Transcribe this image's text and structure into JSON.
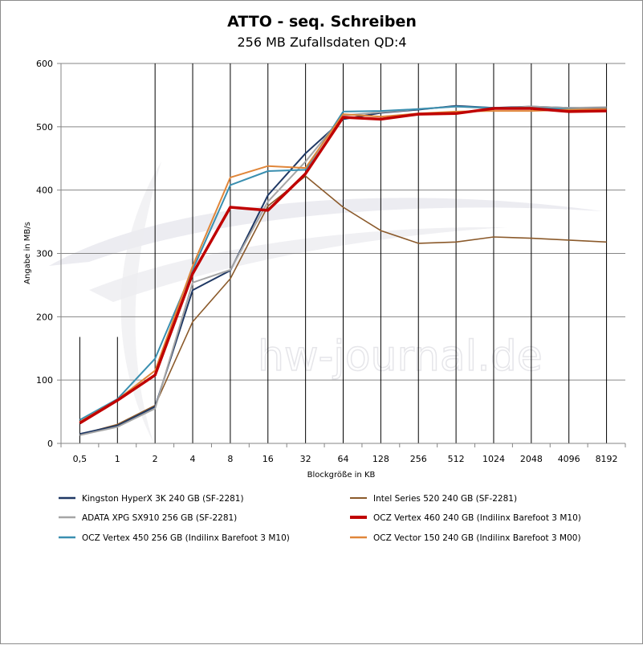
{
  "chart_data": {
    "type": "line",
    "title": "ATTO - seq. Schreiben",
    "subtitle": "256 MB Zufallsdaten QD:4",
    "xlabel": "Blockgröße in KB",
    "ylabel": "Angabe in MB/s",
    "watermark": "hw-journal.de",
    "categories": [
      "0,5",
      "1",
      "2",
      "4",
      "8",
      "16",
      "32",
      "64",
      "128",
      "256",
      "512",
      "1024",
      "2048",
      "4096",
      "8192"
    ],
    "ylim": [
      0,
      600
    ],
    "yticks": [
      "0",
      "100",
      "200",
      "300",
      "400",
      "500",
      "600"
    ],
    "grid": "horizontal and vertical",
    "legend_position": "bottom",
    "series": [
      {
        "name": "Kingston HyperX 3K 240 GB (SF-2281)",
        "color": "#1f3864",
        "width": 2,
        "values": [
          15,
          28,
          58,
          242,
          273,
          392,
          458,
          512,
          522,
          527,
          533,
          530,
          532,
          530,
          530
        ]
      },
      {
        "name": "Intel Series 520 240 GB (SF-2281)",
        "color": "#8b5a2b",
        "width": 1.6,
        "values": [
          14,
          30,
          60,
          192,
          260,
          375,
          422,
          373,
          336,
          316,
          318,
          326,
          324,
          321,
          318
        ]
      },
      {
        "name": "ADATA XPG SX910 256 GB (SF-2281)",
        "color": "#a6a6a6",
        "width": 2,
        "values": [
          13,
          26,
          55,
          254,
          274,
          382,
          445,
          518,
          523,
          528,
          532,
          529,
          532,
          530,
          531
        ]
      },
      {
        "name": "OCZ Vertex 460 240 GB (Indilinx Barefoot 3 M10)",
        "color": "#c00000",
        "width": 3.5,
        "values": [
          32,
          68,
          108,
          268,
          373,
          368,
          426,
          515,
          512,
          520,
          521,
          529,
          529,
          524,
          525
        ]
      },
      {
        "name": "OCZ Vertex 450 256 GB (Indilinx Barefoot 3 M10)",
        "color": "#3a8fb0",
        "width": 2,
        "values": [
          37,
          70,
          134,
          274,
          408,
          430,
          432,
          524,
          525,
          528,
          532,
          530,
          530,
          528,
          527
        ]
      },
      {
        "name": "OCZ Vector 150 240 GB (Indilinx Barefoot 3 M00)",
        "color": "#e0863a",
        "width": 2,
        "values": [
          34,
          69,
          115,
          280,
          420,
          438,
          435,
          520,
          516,
          521,
          524,
          525,
          525,
          527,
          528
        ]
      }
    ]
  }
}
